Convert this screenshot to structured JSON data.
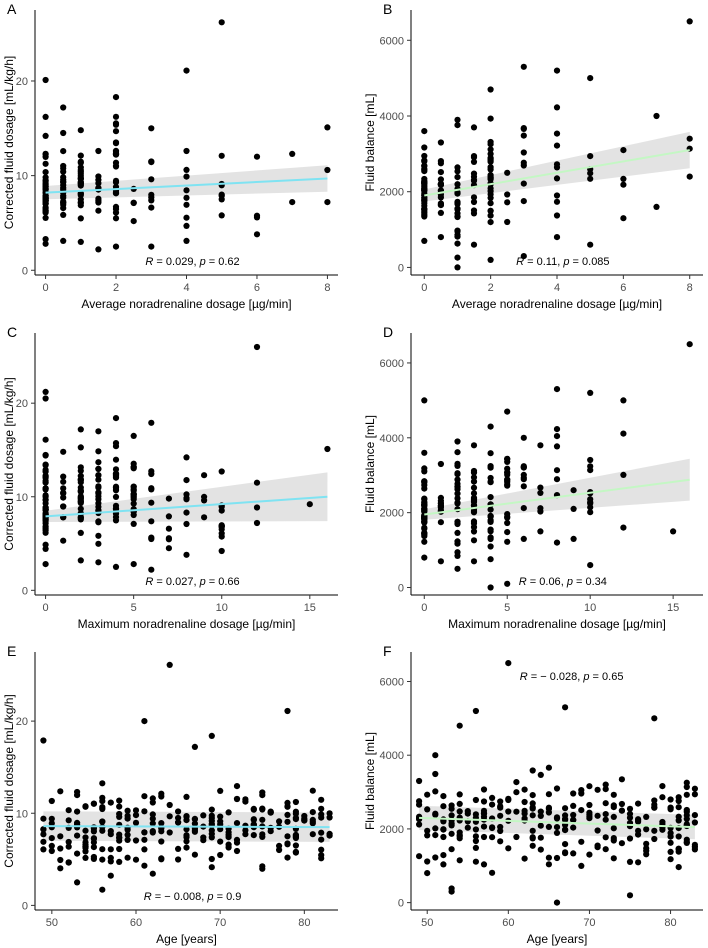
{
  "chart_data": [
    {
      "id": "A",
      "type": "scatter",
      "xlabel": "Average noradrenaline dosage [µg/min]",
      "ylabel": "Corrected fluid dosage [mL/kg/h]",
      "xlim": [
        -0.3,
        8.3
      ],
      "ylim": [
        -0.5,
        27.5
      ],
      "xticks": [
        0,
        2,
        4,
        6,
        8
      ],
      "yticks": [
        0,
        10,
        20
      ],
      "stat": {
        "r_label": "R",
        "r": "0.029",
        "p_label": "p",
        "p": "0.62",
        "pos": "bottom-right"
      },
      "fit": {
        "x0": 0,
        "y0": 8.2,
        "x1": 8,
        "y1": 9.7,
        "color": "#7fe3f2",
        "band_x0": 0.7,
        "band_x1": 1.4
      },
      "seed": 11,
      "groups": [
        {
          "x": 0,
          "n": 45,
          "ymin": 2.8,
          "ymax": 14.2,
          "extra": [
            20.1,
            16.2
          ]
        },
        {
          "x": 0.5,
          "n": 22,
          "ymin": 3.1,
          "ymax": 14.5,
          "extra": [
            17.2
          ]
        },
        {
          "x": 1,
          "n": 26,
          "ymin": 3.0,
          "ymax": 14.8,
          "extra": []
        },
        {
          "x": 1.5,
          "n": 12,
          "ymin": 2.2,
          "ymax": 12.6,
          "extra": []
        },
        {
          "x": 2,
          "n": 30,
          "ymin": 2.5,
          "ymax": 18.3,
          "extra": []
        },
        {
          "x": 2.5,
          "n": 4,
          "ymin": 5.2,
          "ymax": 8.6,
          "extra": []
        },
        {
          "x": 3,
          "n": 9,
          "ymin": 2.5,
          "ymax": 15.0,
          "extra": []
        },
        {
          "x": 4,
          "n": 9,
          "ymin": 3.1,
          "ymax": 12.6,
          "extra": [
            21.1
          ]
        },
        {
          "x": 5,
          "n": 7,
          "ymin": 5.8,
          "ymax": 12.1,
          "extra": [
            26.2
          ]
        },
        {
          "x": 6,
          "n": 4,
          "ymin": 3.8,
          "ymax": 12.0,
          "extra": []
        },
        {
          "x": 7,
          "n": 2,
          "ymin": 7.2,
          "ymax": 12.3,
          "extra": []
        },
        {
          "x": 8,
          "n": 3,
          "ymin": 7.2,
          "ymax": 15.1,
          "extra": []
        }
      ]
    },
    {
      "id": "B",
      "type": "scatter",
      "xlabel": "Average noradrenaline dosage [µg/min]",
      "ylabel": "Fluid balance [mL]",
      "xlim": [
        -0.4,
        8.4
      ],
      "ylim": [
        -200,
        6800
      ],
      "xticks": [
        0,
        2,
        4,
        6,
        8
      ],
      "yticks": [
        0,
        2000,
        4000,
        6000
      ],
      "stat": {
        "r_label": "R",
        "r": "0.11",
        "p_label": "p",
        "p": "0.085",
        "pos": "bottom-right"
      },
      "fit": {
        "x0": 0,
        "y0": 1900,
        "x1": 8,
        "y1": 3100,
        "color": "#c4f7c4",
        "band_x0": 160,
        "band_x1": 480
      },
      "seed": 23,
      "groups": [
        {
          "x": 0,
          "n": 42,
          "ymin": 700,
          "ymax": 3600,
          "extra": []
        },
        {
          "x": 0.5,
          "n": 20,
          "ymin": 800,
          "ymax": 3300,
          "extra": []
        },
        {
          "x": 1,
          "n": 24,
          "ymin": 0,
          "ymax": 3900,
          "extra": []
        },
        {
          "x": 1.5,
          "n": 14,
          "ymin": 600,
          "ymax": 3700,
          "extra": []
        },
        {
          "x": 2,
          "n": 30,
          "ymin": 200,
          "ymax": 4700,
          "extra": []
        },
        {
          "x": 2.5,
          "n": 4,
          "ymin": 1200,
          "ymax": 2500,
          "extra": []
        },
        {
          "x": 3,
          "n": 10,
          "ymin": 300,
          "ymax": 5300,
          "extra": []
        },
        {
          "x": 4,
          "n": 11,
          "ymin": 800,
          "ymax": 5200,
          "extra": []
        },
        {
          "x": 5,
          "n": 6,
          "ymin": 600,
          "ymax": 5000,
          "extra": []
        },
        {
          "x": 6,
          "n": 4,
          "ymin": 1300,
          "ymax": 3100,
          "extra": []
        },
        {
          "x": 7,
          "n": 2,
          "ymin": 1600,
          "ymax": 4000,
          "extra": []
        },
        {
          "x": 8,
          "n": 3,
          "ymin": 2400,
          "ymax": 3400,
          "extra": [
            6500
          ]
        }
      ]
    },
    {
      "id": "C",
      "type": "scatter",
      "xlabel": "Maximum noradrenaline dosage [µg/min]",
      "ylabel": "Corrected fluid dosage [mL/kg/h]",
      "xlim": [
        -0.6,
        16.6
      ],
      "ylim": [
        -0.5,
        27.5
      ],
      "xticks": [
        0,
        5,
        10,
        15
      ],
      "yticks": [
        0,
        10,
        20
      ],
      "stat": {
        "r_label": "R",
        "r": "0.027",
        "p_label": "p",
        "p": "0.66",
        "pos": "bottom-right"
      },
      "fit": {
        "x0": 0,
        "y0": 7.9,
        "x1": 16,
        "y1": 10.0,
        "color": "#7fe3f2",
        "band_x0": 0.6,
        "band_x1": 2.6
      },
      "seed": 37,
      "groups": [
        {
          "x": 0,
          "n": 48,
          "ymin": 2.8,
          "ymax": 16.1,
          "extra": [
            21.2,
            20.5
          ]
        },
        {
          "x": 1,
          "n": 12,
          "ymin": 5.3,
          "ymax": 14.8,
          "extra": []
        },
        {
          "x": 2,
          "n": 28,
          "ymin": 3.2,
          "ymax": 17.2,
          "extra": []
        },
        {
          "x": 3,
          "n": 24,
          "ymin": 3.0,
          "ymax": 17.0,
          "extra": []
        },
        {
          "x": 4,
          "n": 26,
          "ymin": 2.5,
          "ymax": 18.4,
          "extra": []
        },
        {
          "x": 5,
          "n": 22,
          "ymin": 2.8,
          "ymax": 16.5,
          "extra": []
        },
        {
          "x": 6,
          "n": 10,
          "ymin": 2.2,
          "ymax": 17.9,
          "extra": []
        },
        {
          "x": 7,
          "n": 6,
          "ymin": 4.5,
          "ymax": 9.8,
          "extra": []
        },
        {
          "x": 8,
          "n": 8,
          "ymin": 3.8,
          "ymax": 14.2,
          "extra": []
        },
        {
          "x": 9,
          "n": 4,
          "ymin": 7.8,
          "ymax": 12.3,
          "extra": []
        },
        {
          "x": 10,
          "n": 12,
          "ymin": 4.2,
          "ymax": 12.7,
          "extra": []
        },
        {
          "x": 12,
          "n": 3,
          "ymin": 7.2,
          "ymax": 11.5,
          "extra": [
            26.0
          ]
        },
        {
          "x": 15,
          "n": 1,
          "ymin": 9.2,
          "ymax": 9.2,
          "extra": []
        },
        {
          "x": 16,
          "n": 1,
          "ymin": 15.1,
          "ymax": 15.1,
          "extra": []
        }
      ]
    },
    {
      "id": "D",
      "type": "scatter",
      "xlabel": "Maximum noradrenaline dosage [µg/min]",
      "ylabel": "Fluid balance [mL]",
      "xlim": [
        -0.8,
        16.8
      ],
      "ylim": [
        -200,
        6800
      ],
      "xticks": [
        0,
        5,
        10,
        15
      ],
      "yticks": [
        0,
        2000,
        4000,
        6000
      ],
      "stat": {
        "r_label": "R",
        "r": "0.06",
        "p_label": "p",
        "p": "0.34",
        "pos": "bottom-right"
      },
      "fit": {
        "x0": 0,
        "y0": 1950,
        "x1": 16,
        "y1": 2880,
        "color": "#c4f7c4",
        "band_x0": 140,
        "band_x1": 560
      },
      "seed": 53,
      "groups": [
        {
          "x": 0,
          "n": 46,
          "ymin": 800,
          "ymax": 3600,
          "extra": [
            5000
          ]
        },
        {
          "x": 1,
          "n": 14,
          "ymin": 700,
          "ymax": 3300,
          "extra": []
        },
        {
          "x": 2,
          "n": 26,
          "ymin": 500,
          "ymax": 3900,
          "extra": []
        },
        {
          "x": 3,
          "n": 24,
          "ymin": 700,
          "ymax": 3800,
          "extra": []
        },
        {
          "x": 4,
          "n": 24,
          "ymin": 0,
          "ymax": 4300,
          "extra": []
        },
        {
          "x": 5,
          "n": 20,
          "ymin": 100,
          "ymax": 4700,
          "extra": []
        },
        {
          "x": 6,
          "n": 10,
          "ymin": 1300,
          "ymax": 4000,
          "extra": []
        },
        {
          "x": 7,
          "n": 6,
          "ymin": 1500,
          "ymax": 3800,
          "extra": []
        },
        {
          "x": 8,
          "n": 8,
          "ymin": 1200,
          "ymax": 5300,
          "extra": []
        },
        {
          "x": 9,
          "n": 3,
          "ymin": 1300,
          "ymax": 2600,
          "extra": []
        },
        {
          "x": 10,
          "n": 12,
          "ymin": 600,
          "ymax": 5200,
          "extra": []
        },
        {
          "x": 12,
          "n": 4,
          "ymin": 1600,
          "ymax": 5000,
          "extra": []
        },
        {
          "x": 15,
          "n": 1,
          "ymin": 1500,
          "ymax": 1500,
          "extra": []
        },
        {
          "x": 16,
          "n": 1,
          "ymin": 6500,
          "ymax": 6500,
          "extra": []
        }
      ]
    },
    {
      "id": "E",
      "type": "scatter",
      "xlabel": "Age [years]",
      "ylabel": "Corrected fluid dosage [mL/kg/h]",
      "xlim": [
        48,
        84
      ],
      "ylim": [
        -0.5,
        27.5
      ],
      "xticks": [
        50,
        60,
        70,
        80
      ],
      "yticks": [
        0,
        10,
        20
      ],
      "stat": {
        "r_label": "R",
        "r": "− 0.008",
        "p_label": "p",
        "p": "0.9",
        "pos": "bottom-right"
      },
      "fit": {
        "x0": 49,
        "y0": 8.6,
        "x1": 83,
        "y1": 8.5,
        "color": "#7fe3f2",
        "band_x0": 1.6,
        "band_x1": 1.6
      },
      "seed": 71,
      "cloud": {
        "n": 260,
        "xmin": 49,
        "xmax": 83,
        "center": 8.2,
        "spread": 3.0,
        "ymin": 2.2,
        "ymax": 17.5
      },
      "extra_points": [
        [
          64,
          26.1
        ],
        [
          61,
          20.0
        ],
        [
          78,
          21.1
        ],
        [
          49,
          17.9
        ],
        [
          67,
          17.2
        ],
        [
          69,
          18.4
        ],
        [
          53,
          2.5
        ],
        [
          56,
          1.7
        ]
      ]
    },
    {
      "id": "F",
      "type": "scatter",
      "xlabel": "Age [years]",
      "ylabel": "Fluid balance [mL]",
      "xlim": [
        48,
        84
      ],
      "ylim": [
        -200,
        6800
      ],
      "xticks": [
        50,
        60,
        70,
        80
      ],
      "yticks": [
        0,
        2000,
        4000,
        6000
      ],
      "stat": {
        "r_label": "R",
        "r": "− 0.028",
        "p_label": "p",
        "p": "0.65",
        "pos": "top-right"
      },
      "fit": {
        "x0": 49,
        "y0": 2300,
        "x1": 83,
        "y1": 2050,
        "color": "#c4f7c4",
        "band_x0": 330,
        "band_x1": 330
      },
      "seed": 97,
      "cloud": {
        "n": 260,
        "xmin": 49,
        "xmax": 83,
        "center": 2150,
        "spread": 800,
        "ymin": 300,
        "ymax": 4100
      },
      "extra_points": [
        [
          60,
          6500
        ],
        [
          67,
          5300
        ],
        [
          56,
          5200
        ],
        [
          54,
          4800
        ],
        [
          51,
          4000
        ],
        [
          78,
          5000
        ],
        [
          49,
          3300
        ],
        [
          53,
          300
        ],
        [
          75,
          200
        ],
        [
          66,
          0
        ],
        [
          50,
          800
        ]
      ]
    }
  ]
}
